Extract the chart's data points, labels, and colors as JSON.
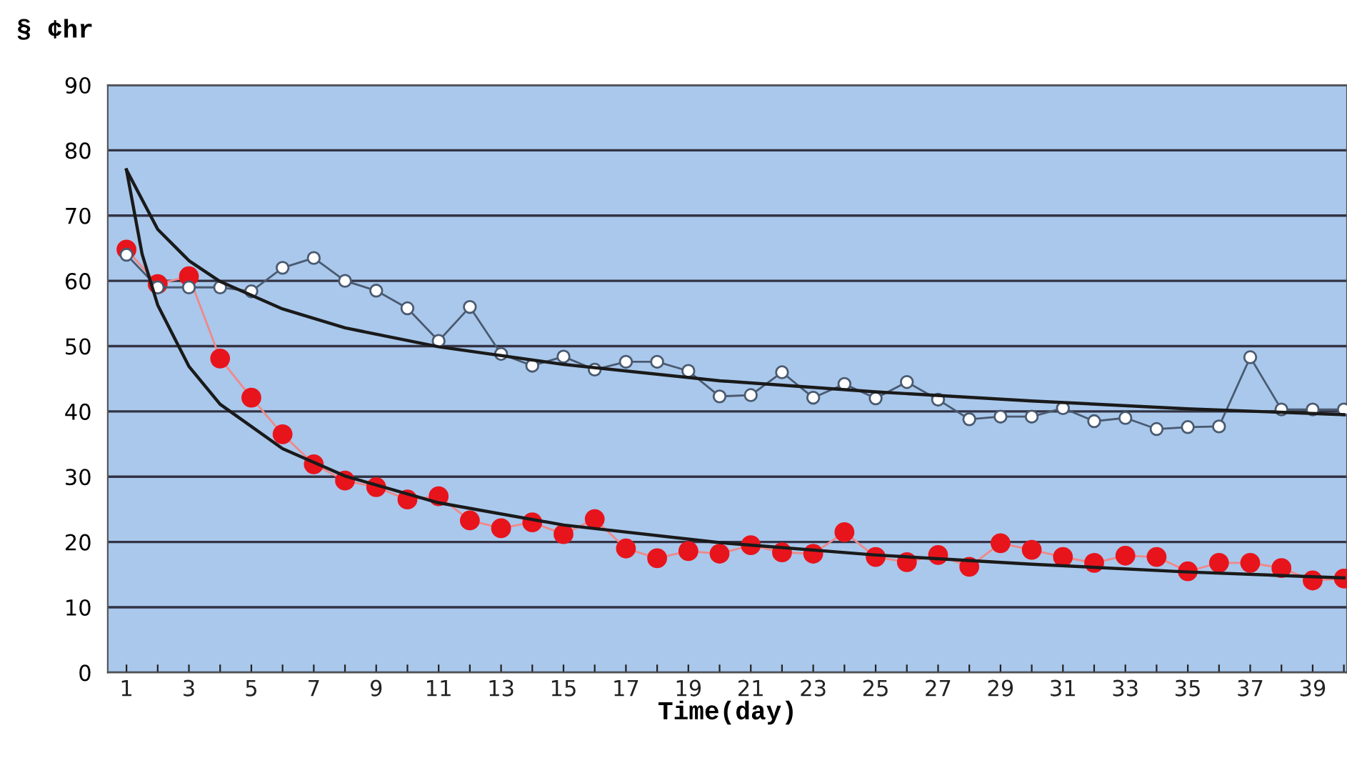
{
  "chart_data": {
    "type": "line",
    "ylabel": "§ ¢hr",
    "xlabel": "Time(day)",
    "x": [
      1,
      2,
      3,
      4,
      5,
      6,
      7,
      8,
      9,
      10,
      11,
      12,
      13,
      14,
      15,
      16,
      17,
      18,
      19,
      20,
      21,
      22,
      23,
      24,
      25,
      26,
      27,
      28,
      29,
      30,
      31,
      32,
      33,
      34,
      35,
      36,
      37,
      38,
      39,
      40
    ],
    "series": [
      {
        "color": "#ffffff",
        "marker": "circle",
        "values": [
          64,
          59,
          59,
          59,
          58.4,
          62,
          63.5,
          60,
          58.5,
          55.8,
          50.8,
          56,
          48.8,
          47,
          48.4,
          46.4,
          47.6,
          47.6,
          46.2,
          42.3,
          42.5,
          46,
          42.1,
          44.2,
          42,
          44.5,
          41.8,
          38.8,
          39.2,
          39.2,
          40.5,
          38.5,
          39,
          37.3,
          37.6,
          37.7,
          48.3,
          40.3,
          40.3,
          40.3
        ]
      },
      {
        "color": "#e8141c",
        "marker": "circle",
        "values": [
          64.8,
          59.5,
          60.7,
          48.1,
          42.1,
          36.5,
          31.9,
          29.4,
          28.4,
          26.5,
          27,
          23.3,
          22.1,
          23,
          21.2,
          23.5,
          19,
          17.5,
          18.6,
          18.2,
          19.5,
          18.4,
          18.2,
          21.5,
          17.7,
          16.9,
          18,
          16.2,
          19.8,
          18.8,
          17.7,
          16.8,
          17.9,
          17.7,
          15.5,
          16.8,
          16.8,
          16,
          14.1,
          14.4
        ]
      },
      {
        "type": "line",
        "color": "#1a1a1a",
        "marker": "none",
        "x": [
          1,
          2,
          3,
          4,
          6,
          8,
          11,
          15,
          20,
          25,
          30,
          35,
          40
        ],
        "values": [
          77,
          67.9,
          63.1,
          59.9,
          55.7,
          52.8,
          49.9,
          47.2,
          44.7,
          43,
          41.6,
          40.4,
          39.5
        ]
      },
      {
        "type": "line",
        "color": "#1a1a1a",
        "marker": "none",
        "x": [
          1,
          1.5,
          2,
          3,
          4,
          6,
          8,
          11,
          15,
          20,
          25,
          30,
          35,
          40
        ],
        "values": [
          77,
          64.1,
          56.3,
          46.9,
          41.1,
          34.3,
          30.1,
          26,
          22.6,
          19.9,
          18,
          16.6,
          15.4,
          14.5
        ]
      }
    ],
    "xlim": [
      0.4,
      40.1
    ],
    "xticks": [
      1,
      {
        "value": 2,
        "label": null
      },
      3,
      {
        "value": 4,
        "label": null
      },
      5,
      {
        "value": 6,
        "label": null
      },
      7,
      {
        "value": 8,
        "label": null
      },
      9,
      {
        "value": 10,
        "label": null
      },
      11,
      {
        "value": 12,
        "label": null
      },
      13,
      {
        "value": 14,
        "label": null
      },
      15,
      {
        "value": 16,
        "label": null
      },
      17,
      {
        "value": 18,
        "label": null
      },
      19,
      {
        "value": 20,
        "label": null
      },
      21,
      {
        "value": 22,
        "label": null
      },
      23,
      {
        "value": 24,
        "label": null
      },
      25,
      {
        "value": 26,
        "label": null
      },
      27,
      {
        "value": 28,
        "label": null
      },
      29,
      {
        "value": 30,
        "label": null
      },
      31,
      {
        "value": 32,
        "label": null
      },
      33,
      {
        "value": 34,
        "label": null
      },
      35,
      {
        "value": 36,
        "label": null
      },
      37,
      {
        "value": 38,
        "label": null
      },
      39,
      {
        "value": 40,
        "label": null
      }
    ],
    "ylim": [
      0,
      90
    ],
    "yticks": [
      0,
      10,
      20,
      30,
      40,
      50,
      60,
      70,
      80,
      90
    ],
    "grid": "y"
  }
}
